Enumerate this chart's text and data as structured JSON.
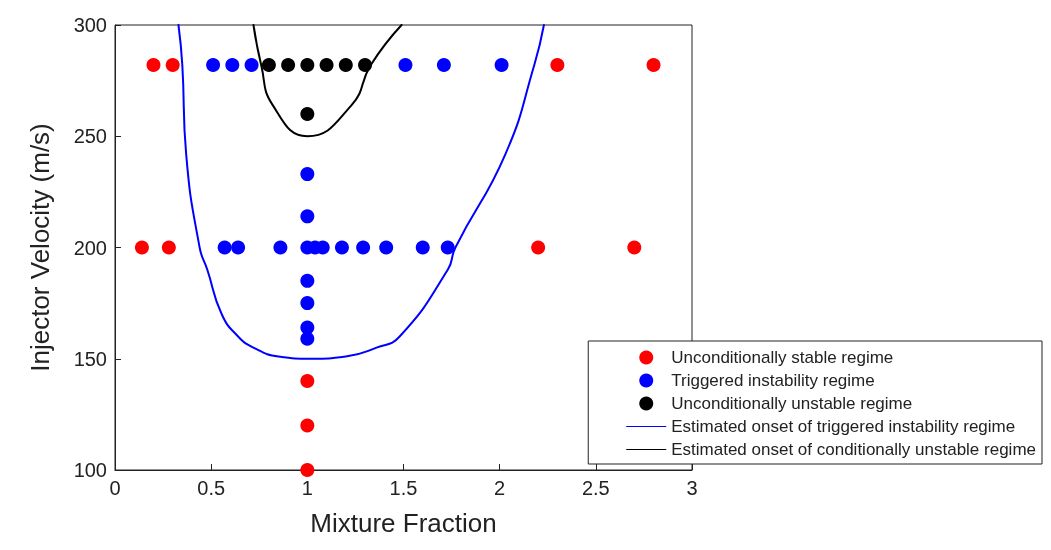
{
  "chart_data": {
    "type": "scatter",
    "xlabel": "Mixture Fraction",
    "ylabel": "Injector Velocity (m/s)",
    "xlim": [
      0,
      3
    ],
    "ylim": [
      100,
      300
    ],
    "xticks": [
      0,
      0.5,
      1,
      1.5,
      2,
      2.5,
      3
    ],
    "yticks": [
      100,
      150,
      200,
      250,
      300
    ],
    "legend": "bottom right",
    "marker": "circle",
    "series": [
      {
        "name": "Unconditionally stable regime",
        "color": "#ff0000",
        "x": [
          0.2,
          0.3,
          2.3,
          2.8,
          0.14,
          0.28,
          2.2,
          2.7,
          1,
          1,
          1
        ],
        "values": [
          282,
          282,
          282,
          282,
          200,
          200,
          200,
          200,
          140,
          120,
          100
        ]
      },
      {
        "name": "Triggered instability regime",
        "color": "#0000ff",
        "x": [
          0.51,
          0.61,
          0.71,
          1.51,
          1.71,
          2.01,
          0.57,
          0.64,
          0.86,
          1,
          1.04,
          1.08,
          1.18,
          1.29,
          1.41,
          1.6,
          1.73,
          1,
          1,
          1,
          1,
          1,
          1
        ],
        "values": [
          282,
          282,
          282,
          282,
          282,
          282,
          200,
          200,
          200,
          200,
          200,
          200,
          200,
          200,
          200,
          200,
          200,
          233,
          214,
          185,
          175,
          164,
          159
        ]
      },
      {
        "name": "Unconditionally unstable regime",
        "color": "#000000",
        "x": [
          0.8,
          0.9,
          1,
          1.1,
          1.2,
          1.3,
          1
        ],
        "values": [
          282,
          282,
          282,
          282,
          282,
          282,
          260
        ]
      },
      {
        "name": "Estimated onset of triggered instability regime",
        "type": "line",
        "line_style": "solid",
        "marker": "none",
        "color": "#0000ff",
        "x": [
          0.33,
          0.35,
          0.37,
          0.44,
          0.48,
          0.555,
          0.64,
          0.72,
          0.85,
          1.02,
          1.2,
          1.36,
          1.48,
          1.73,
          1.77,
          2.03,
          2.18,
          2.23
        ],
        "values": [
          300,
          282,
          242,
          200,
          190,
          170,
          160,
          155,
          151,
          150,
          151,
          155,
          160,
          190,
          200,
          242,
          282,
          300
        ]
      },
      {
        "name": "Estimated onset of conditionally unstable regime",
        "type": "line",
        "line_style": "solid",
        "marker": "none",
        "color": "#000000",
        "x": [
          0.72,
          0.76,
          0.82,
          1,
          1.23,
          1.33,
          1.49
        ],
        "values": [
          300,
          282,
          264,
          250,
          264,
          282,
          300
        ]
      }
    ]
  }
}
